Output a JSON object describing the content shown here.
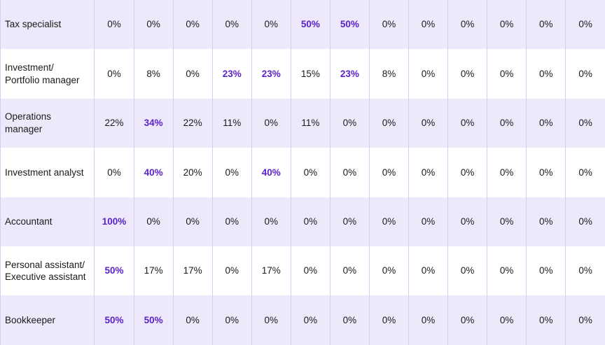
{
  "table": {
    "rows": [
      {
        "label": "Tax specialist",
        "values": [
          "0%",
          "0%",
          "0%",
          "0%",
          "0%",
          "50%",
          "50%",
          "0%",
          "0%",
          "0%",
          "0%",
          "0%",
          "0%"
        ],
        "highlight": [
          5,
          6
        ]
      },
      {
        "label": "Investment/\nPortfolio manager",
        "values": [
          "0%",
          "8%",
          "0%",
          "23%",
          "23%",
          "15%",
          "23%",
          "8%",
          "0%",
          "0%",
          "0%",
          "0%",
          "0%"
        ],
        "highlight": [
          3,
          4,
          6
        ]
      },
      {
        "label": "Operations\nmanager",
        "values": [
          "22%",
          "34%",
          "22%",
          "11%",
          "0%",
          "11%",
          "0%",
          "0%",
          "0%",
          "0%",
          "0%",
          "0%",
          "0%"
        ],
        "highlight": [
          1
        ]
      },
      {
        "label": "Investment analyst",
        "values": [
          "0%",
          "40%",
          "20%",
          "0%",
          "40%",
          "0%",
          "0%",
          "0%",
          "0%",
          "0%",
          "0%",
          "0%",
          "0%"
        ],
        "highlight": [
          1,
          4
        ]
      },
      {
        "label": "Accountant",
        "values": [
          "100%",
          "0%",
          "0%",
          "0%",
          "0%",
          "0%",
          "0%",
          "0%",
          "0%",
          "0%",
          "0%",
          "0%",
          "0%"
        ],
        "highlight": [
          0
        ]
      },
      {
        "label": "Personal assistant/\nExecutive assistant",
        "values": [
          "50%",
          "17%",
          "17%",
          "0%",
          "17%",
          "0%",
          "0%",
          "0%",
          "0%",
          "0%",
          "0%",
          "0%",
          "0%"
        ],
        "highlight": [
          0
        ]
      },
      {
        "label": "Bookkeeper",
        "values": [
          "50%",
          "50%",
          "0%",
          "0%",
          "0%",
          "0%",
          "0%",
          "0%",
          "0%",
          "0%",
          "0%",
          "0%",
          "0%"
        ],
        "highlight": [
          0,
          1
        ]
      }
    ],
    "colors": {
      "shaded_row": "#ede9fb",
      "highlight_text": "#5b21c9",
      "grid_line": "#d6cdf2"
    }
  }
}
